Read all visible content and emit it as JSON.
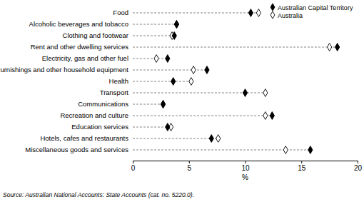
{
  "chart_data": {
    "type": "dot",
    "orientation": "horizontal",
    "categories": [
      "Food",
      "Alcoholic beverages and tobacco",
      "Clothing and footwear",
      "Rent and other dwelling services",
      "Electricity, gas and other fuel",
      "Furnishings and other household equipment",
      "Health",
      "Transport",
      "Communications",
      "Recreation and culture",
      "Education services",
      "Hotels, cafes and restaurants",
      "Miscellaneous goods and services"
    ],
    "series": [
      {
        "name": "Australian Capital Territory",
        "color": "#000000",
        "marker": "diamond",
        "values": [
          10.5,
          3.9,
          3.7,
          18.2,
          3.1,
          6.6,
          3.6,
          10.0,
          2.7,
          12.4,
          3.1,
          7.0,
          15.8
        ]
      },
      {
        "name": "Australia",
        "color": "#000000",
        "marker": "diamond-open",
        "values": [
          11.2,
          3.9,
          3.5,
          17.5,
          2.1,
          5.4,
          5.2,
          11.8,
          2.7,
          11.8,
          3.4,
          7.6,
          13.6
        ]
      }
    ],
    "xlabel": "%",
    "xlim": [
      0,
      20
    ],
    "xticks": [
      0,
      5,
      10,
      15,
      20
    ],
    "legend": "top-right",
    "line_style": "dashed",
    "source": "Source: Australian National Accounts: State Accounts (cat. no. 5220.0)."
  }
}
